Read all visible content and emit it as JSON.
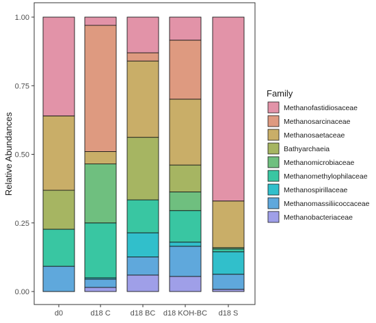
{
  "chart_data": {
    "type": "bar",
    "stacked": true,
    "title": "",
    "xlabel": "",
    "ylabel": "Relative Abundances",
    "ylim": [
      0,
      1
    ],
    "yticks": [
      "0.00",
      "0.25",
      "0.50",
      "0.75",
      "1.00"
    ],
    "categories": [
      "d0",
      "d18 C",
      "d18 BC",
      "d18 KOH-BC",
      "d18 S"
    ],
    "legend_title": "Family",
    "legend_position": "right",
    "grid": false,
    "series": [
      {
        "name": "Methanobacteriaceae",
        "color": "#9F9FE8",
        "values": [
          0.0,
          0.015,
          0.06,
          0.055,
          0.008
        ]
      },
      {
        "name": "Methanomassiliicoccaceae",
        "color": "#5FA8DC",
        "values": [
          0.092,
          0.03,
          0.066,
          0.11,
          0.055
        ]
      },
      {
        "name": "Methanospirillaceae",
        "color": "#31BFCB",
        "values": [
          0.0,
          0.005,
          0.088,
          0.015,
          0.082
        ]
      },
      {
        "name": "Methanomethylophilaceae",
        "color": "#39C6A2",
        "values": [
          0.135,
          0.2,
          0.12,
          0.115,
          0.01
        ]
      },
      {
        "name": "Methanomicrobiaceae",
        "color": "#6FBF7F",
        "values": [
          0.0,
          0.215,
          0.0,
          0.068,
          0.005
        ]
      },
      {
        "name": "Bathyarchaeia",
        "color": "#A6B562",
        "values": [
          0.142,
          0.0,
          0.228,
          0.098,
          0.0
        ]
      },
      {
        "name": "Methanosaetaceae",
        "color": "#C9AE68",
        "values": [
          0.271,
          0.045,
          0.278,
          0.24,
          0.17
        ]
      },
      {
        "name": "Methanosarcinaceae",
        "color": "#DE9A80",
        "values": [
          0.0,
          0.46,
          0.03,
          0.215,
          0.0
        ]
      },
      {
        "name": "Methanofastidiosaceae",
        "color": "#E293A8",
        "values": [
          0.36,
          0.03,
          0.13,
          0.084,
          0.67
        ]
      }
    ],
    "legend_order": [
      "Methanofastidiosaceae",
      "Methanosarcinaceae",
      "Methanosaetaceae",
      "Bathyarchaeia",
      "Methanomicrobiaceae",
      "Methanomethylophilaceae",
      "Methanospirillaceae",
      "Methanomassiliicoccaceae",
      "Methanobacteriaceae"
    ]
  }
}
